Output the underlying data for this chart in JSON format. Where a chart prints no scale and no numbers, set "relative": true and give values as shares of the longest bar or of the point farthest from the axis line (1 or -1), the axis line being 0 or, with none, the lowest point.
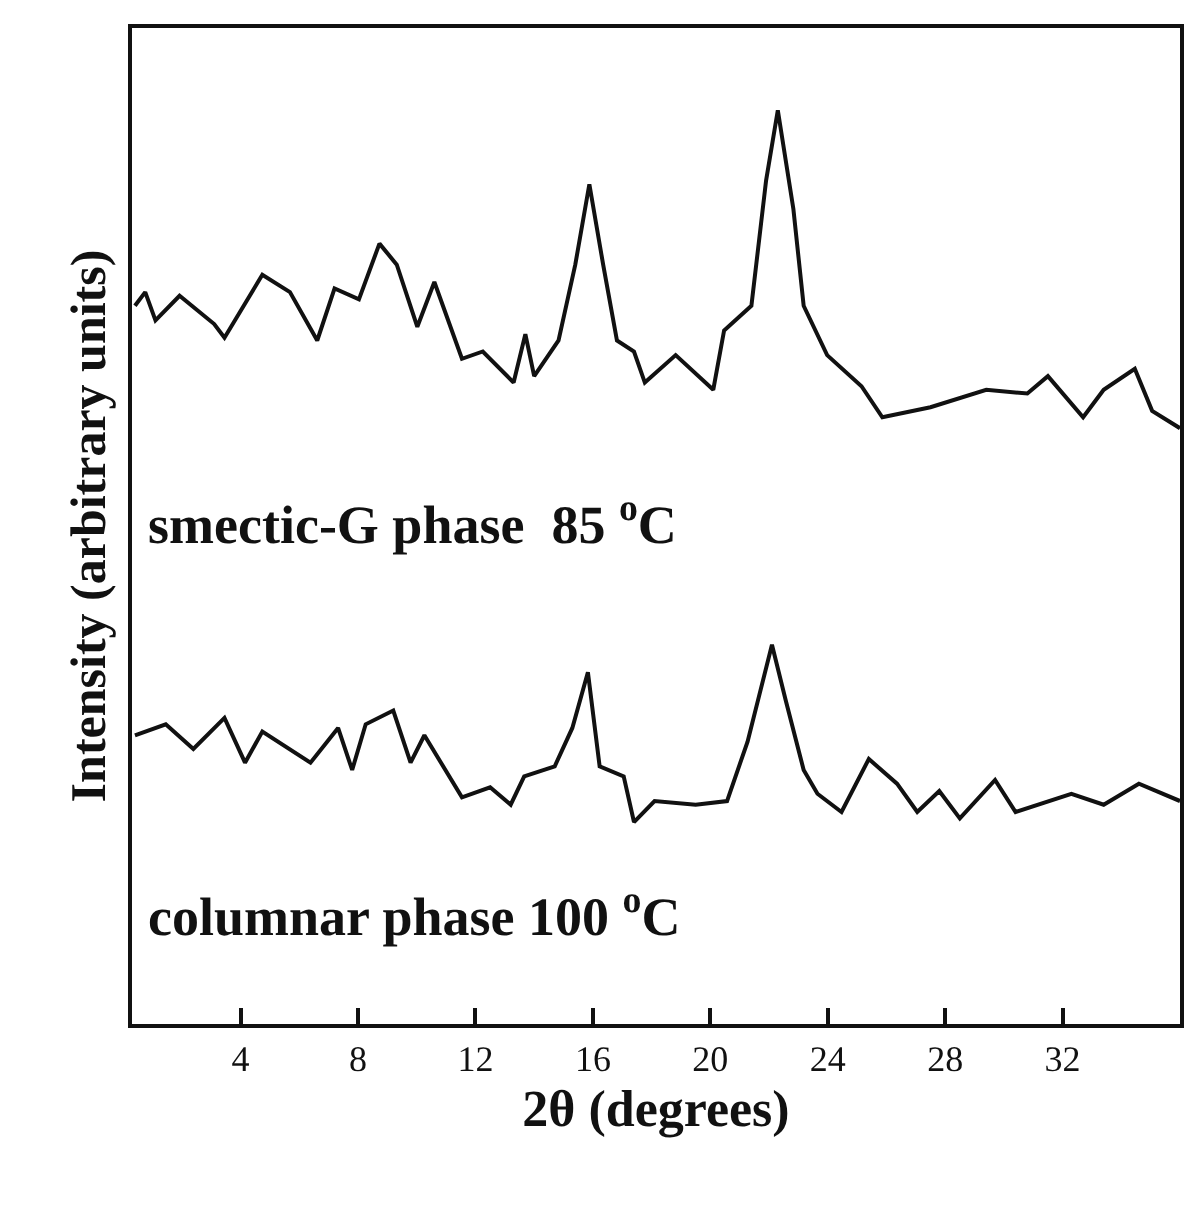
{
  "chart_data": {
    "type": "line",
    "relative": true,
    "xlabel": "2θ (degrees)",
    "ylabel": "Intensity (arbitrary units)",
    "xlim": [
      0.3,
      36
    ],
    "xticks": [
      4,
      8,
      12,
      16,
      20,
      24,
      28,
      32
    ],
    "legend": false,
    "marker": "none",
    "line_style": "solid",
    "series": [
      {
        "name": "smectic-G phase  85 $^{o}$C",
        "color": "#111111",
        "x": [
          0.4,
          0.75,
          1.1,
          1.92,
          3.1,
          3.45,
          4.74,
          5.68,
          6.61,
          7.2,
          8.03,
          8.73,
          9.32,
          10.02,
          10.6,
          11.54,
          12.25,
          13.3,
          13.7,
          14.0,
          14.83,
          15.4,
          15.88,
          16.35,
          16.82,
          17.4,
          17.77,
          18.82,
          20.1,
          20.47,
          21.4,
          21.9,
          22.3,
          22.83,
          23.18,
          23.98,
          25.15,
          25.86,
          27.5,
          29.4,
          30.8,
          31.5,
          32.7,
          33.4,
          34.46,
          35.05,
          36.0
        ],
        "values": [
          0.786,
          0.801,
          0.77,
          0.797,
          0.766,
          0.751,
          0.82,
          0.801,
          0.748,
          0.805,
          0.793,
          0.854,
          0.831,
          0.763,
          0.812,
          0.728,
          0.736,
          0.702,
          0.755,
          0.709,
          0.748,
          0.831,
          0.919,
          0.831,
          0.748,
          0.736,
          0.702,
          0.732,
          0.694,
          0.759,
          0.786,
          0.923,
          1.0,
          0.892,
          0.786,
          0.732,
          0.698,
          0.664,
          0.675,
          0.694,
          0.69,
          0.709,
          0.664,
          0.694,
          0.717,
          0.671,
          0.652
        ]
      },
      {
        "name": "columnar phase 100 $^{o}$C",
        "color": "#111111",
        "x": [
          0.4,
          1.45,
          2.39,
          3.45,
          4.15,
          4.74,
          6.38,
          7.32,
          7.8,
          8.26,
          9.2,
          9.79,
          10.26,
          11.54,
          12.5,
          13.2,
          13.66,
          14.7,
          15.3,
          15.83,
          16.23,
          17.05,
          17.4,
          18.1,
          19.5,
          20.57,
          21.27,
          22.1,
          22.57,
          23.18,
          23.65,
          24.47,
          25.4,
          26.36,
          27.05,
          27.8,
          28.5,
          29.7,
          30.4,
          32.3,
          33.4,
          34.6,
          36.0
        ],
        "values": [
          0.316,
          0.328,
          0.301,
          0.335,
          0.286,
          0.32,
          0.286,
          0.324,
          0.278,
          0.328,
          0.343,
          0.286,
          0.316,
          0.248,
          0.259,
          0.24,
          0.271,
          0.282,
          0.324,
          0.385,
          0.282,
          0.271,
          0.221,
          0.244,
          0.24,
          0.244,
          0.309,
          0.415,
          0.354,
          0.278,
          0.252,
          0.232,
          0.29,
          0.263,
          0.232,
          0.255,
          0.225,
          0.267,
          0.232,
          0.252,
          0.24,
          0.263,
          0.244
        ]
      }
    ]
  }
}
